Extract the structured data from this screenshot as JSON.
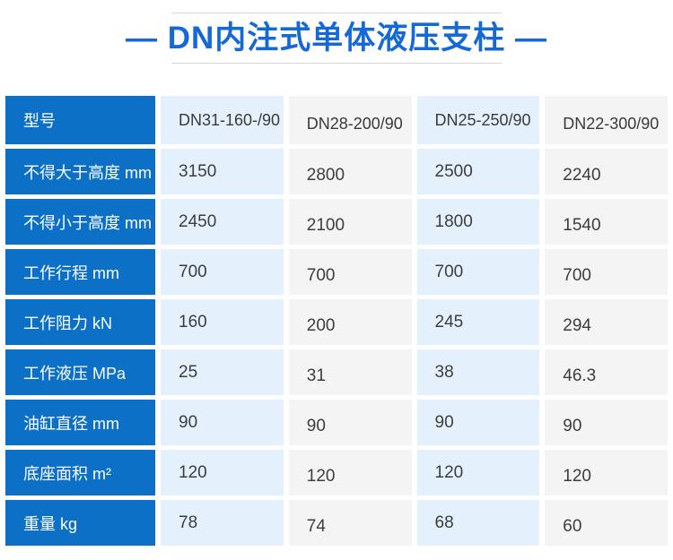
{
  "title": {
    "text": "— DN内注式单体液压支柱 —"
  },
  "chart_data": {
    "type": "table",
    "title": "DN内注式单体液压支柱",
    "header": {
      "label": "型号",
      "models": [
        "DN31-160-/90",
        "DN28-200/90",
        "DN25-250/90",
        "DN22-300/90"
      ]
    },
    "rows": [
      {
        "label": "不得大于高度 mm",
        "values": [
          "3150",
          "2800",
          "2500",
          "2240"
        ]
      },
      {
        "label": "不得小于高度 mm",
        "values": [
          "2450",
          "2100",
          "1800",
          "1540"
        ]
      },
      {
        "label": "工作行程 mm",
        "values": [
          "700",
          "700",
          "700",
          "700"
        ]
      },
      {
        "label": "工作阻力 kN",
        "values": [
          "160",
          "200",
          "245",
          "294"
        ]
      },
      {
        "label": "工作液压 MPa",
        "values": [
          "25",
          "31",
          "38",
          "46.3"
        ]
      },
      {
        "label": "油缸直径 mm",
        "values": [
          "90",
          "90",
          "90",
          "90"
        ]
      },
      {
        "label": "底座面积 m²",
        "values": [
          "120",
          "120",
          "120",
          "120"
        ]
      },
      {
        "label": "重量 kg",
        "values": [
          "78",
          "74",
          "68",
          "60"
        ]
      }
    ]
  },
  "colors": {
    "title_text": "#1569d6",
    "row_header_bg": "#0b70c6",
    "row_header_text": "#ffffff",
    "cell_alt_blue": "#e4f1fc",
    "cell_alt_gray": "#f4f4f4",
    "value_text": "#3d3d3d",
    "divider_line": "#d6d6d6"
  }
}
